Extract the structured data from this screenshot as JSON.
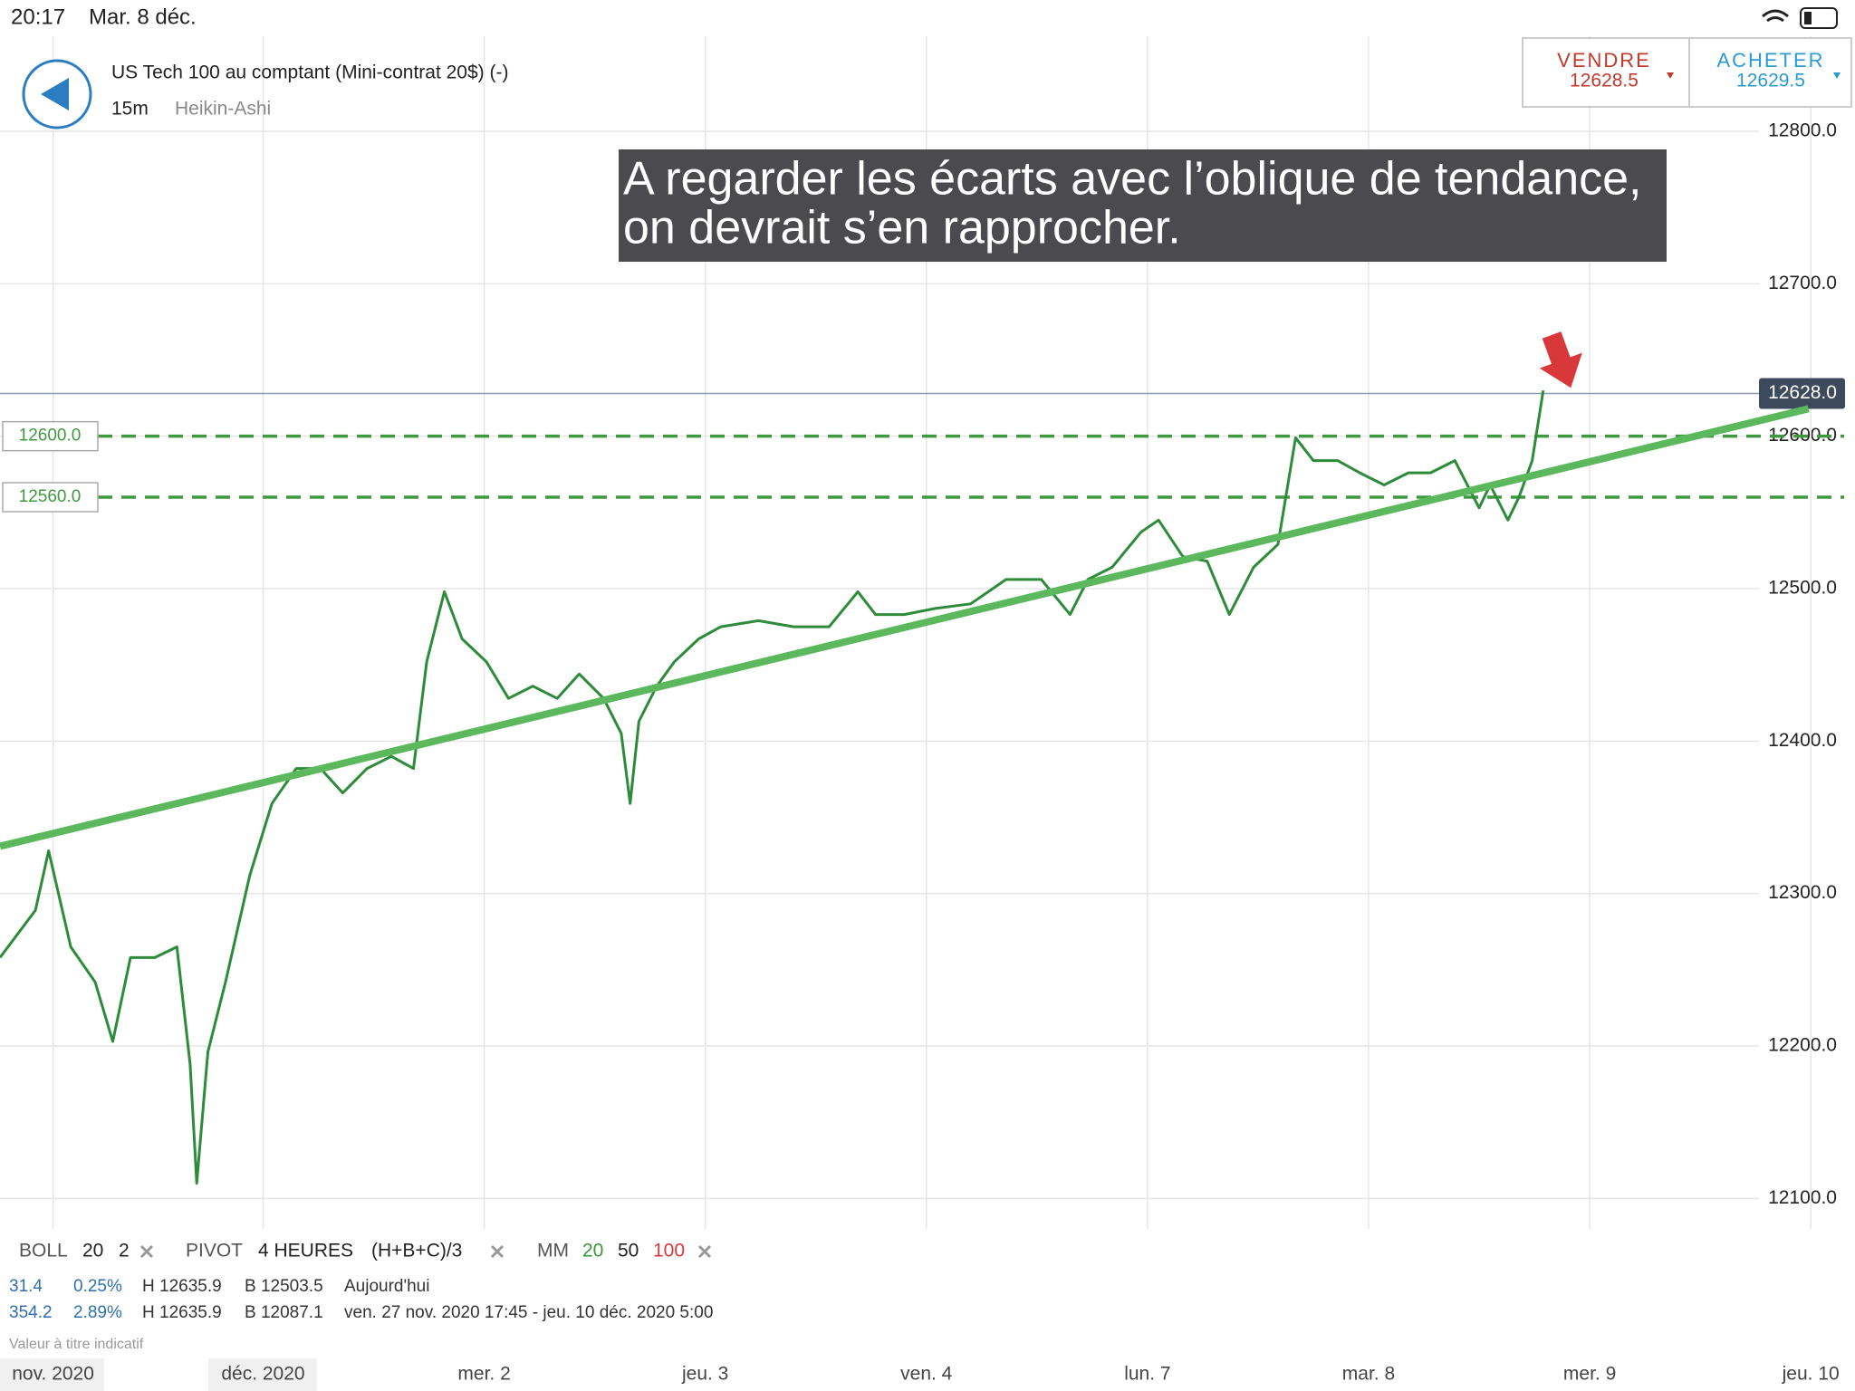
{
  "status_bar": {
    "time": "20:17",
    "date": "Mar. 8 déc."
  },
  "header": {
    "title": "US Tech 100 au comptant (Mini-contrat 20$) (-)",
    "interval": "15m",
    "chart_style": "Heikin-Ashi"
  },
  "trade": {
    "sell_label": "VENDRE",
    "sell_price": "12628.5",
    "buy_label": "ACHETER",
    "buy_price": "12629.5"
  },
  "annotation": {
    "line1": "A regarder les écarts avec l’oblique de tendance,",
    "line2": "on devrait s’en rapprocher."
  },
  "chart_data": {
    "type": "line",
    "xlim": [
      -0.19,
      8.2
    ],
    "ylim": [
      12080,
      12860
    ],
    "yticks": [
      {
        "value": 12100,
        "label": "12100.0"
      },
      {
        "value": 12200,
        "label": "12200.0"
      },
      {
        "value": 12300,
        "label": "12300.0"
      },
      {
        "value": 12400,
        "label": "12400.0"
      },
      {
        "value": 12500,
        "label": "12500.0"
      },
      {
        "value": 12600,
        "label": "12600.0"
      },
      {
        "value": 12700,
        "label": "12700.0"
      },
      {
        "value": 12800,
        "label": "12800.0"
      }
    ],
    "xticks": [
      {
        "value": 0.05,
        "label": "nov. 2020"
      },
      {
        "value": 1,
        "label": "déc. 2020"
      },
      {
        "value": 2,
        "label": "mer. 2"
      },
      {
        "value": 3,
        "label": "jeu. 3"
      },
      {
        "value": 4,
        "label": "ven. 4"
      },
      {
        "value": 5,
        "label": "lun. 7"
      },
      {
        "value": 6,
        "label": "mar. 8"
      },
      {
        "value": 7,
        "label": "mer. 9"
      },
      {
        "value": 8,
        "label": "jeu. 10"
      }
    ],
    "grid": true,
    "current_price": {
      "value": 12628,
      "label": "12628.0"
    },
    "levels": [
      {
        "value": 12600,
        "label": "12600.0"
      },
      {
        "value": 12560,
        "label": "12560.0"
      }
    ],
    "level_color": "#3f9a3f",
    "series": [
      {
        "color": "#2e8b3a",
        "x": [
          -0.19,
          -0.03,
          0.03,
          0.13,
          0.24,
          0.32,
          0.4,
          0.51,
          0.61,
          0.67,
          0.7,
          0.75,
          0.83,
          0.94,
          1.04,
          1.15,
          1.26,
          1.36,
          1.47,
          1.58,
          1.68,
          1.74,
          1.82,
          1.9,
          2.01,
          2.11,
          2.22,
          2.33,
          2.43,
          2.54,
          2.62,
          2.66,
          2.7,
          2.78,
          2.86,
          2.97,
          3.07,
          3.24,
          3.4,
          3.56,
          3.69,
          3.77,
          3.9,
          4.04,
          4.2,
          4.36,
          4.52,
          4.65,
          4.73,
          4.84,
          4.97,
          5.05,
          5.16,
          5.27,
          5.37,
          5.48,
          5.59,
          5.67,
          5.75,
          5.86,
          5.96,
          6.07,
          6.18,
          6.28,
          6.39,
          6.5,
          6.55,
          6.63,
          6.68,
          6.74,
          6.79
        ],
        "values": [
          12258,
          12289,
          12328,
          12265,
          12242,
          12203,
          12258,
          12258,
          12265,
          12188,
          12110,
          12196,
          12242,
          12312,
          12359,
          12382,
          12382,
          12366,
          12382,
          12390,
          12382,
          12452,
          12498,
          12467,
          12452,
          12428,
          12436,
          12428,
          12444,
          12428,
          12405,
          12359,
          12413,
          12436,
          12452,
          12467,
          12475,
          12479,
          12475,
          12475,
          12498,
          12483,
          12483,
          12487,
          12490,
          12506,
          12506,
          12483,
          12506,
          12514,
          12537,
          12545,
          12521,
          12518,
          12483,
          12514,
          12529,
          12599,
          12584,
          12584,
          12576,
          12568,
          12576,
          12576,
          12584,
          12553,
          12568,
          12545,
          12560,
          12584,
          12630
        ]
      }
    ],
    "trend_line": {
      "color": "#5cb85c",
      "x": [
        -0.19,
        7.99
      ],
      "values": [
        12331,
        12618
      ]
    }
  },
  "indicators": {
    "boll": [
      "BOLL",
      "20",
      "2"
    ],
    "pivot": [
      "PIVOT",
      "4 HEURES",
      "(H+B+C)/3"
    ],
    "mm": [
      "MM",
      "20",
      "50",
      "100"
    ],
    "rows": [
      [
        "31.4",
        "0.25%",
        "H 12635.9",
        "B 12503.5",
        "Aujourd'hui"
      ],
      [
        "354.2",
        "2.89%",
        "H 12635.9",
        "B 12087.1",
        "ven. 27 nov. 2020 17:45 - jeu. 10 déc. 2020 5:00"
      ]
    ],
    "note": "Valeur à titre indicatif"
  }
}
